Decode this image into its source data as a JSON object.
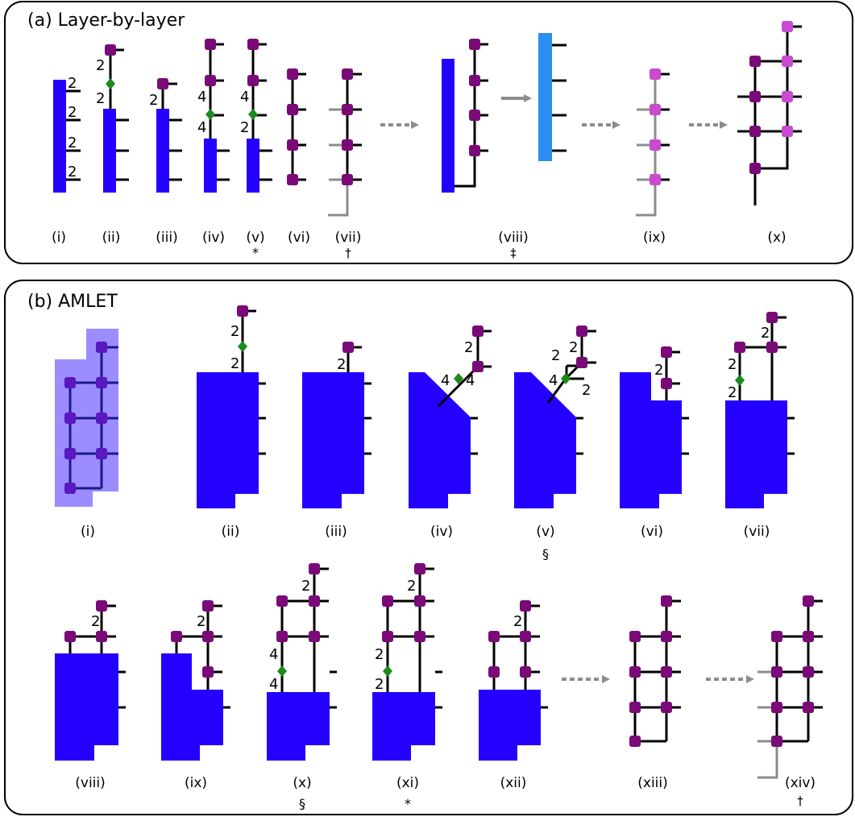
{
  "panel_a": {
    "title": "(a) Layer-by-layer",
    "labels": [
      "(i)",
      "(ii)",
      "(iii)",
      "(iv)",
      "(v)",
      "(vi)",
      "(vii)",
      "(viii)",
      "(ix)",
      "(x)"
    ],
    "marks": {
      "v": "*",
      "vii": "†",
      "viii": "‡"
    },
    "bond_dims": {
      "two": "2",
      "four": "4"
    }
  },
  "panel_b": {
    "title": "(b) AMLET",
    "labels_row1": [
      "(i)",
      "(ii)",
      "(iii)",
      "(iv)",
      "(v)",
      "(vi)",
      "(vii)"
    ],
    "labels_row2": [
      "(viii)",
      "(ix)",
      "(x)",
      "(xi)",
      "(xii)",
      "(xiii)",
      "(xiv)"
    ],
    "marks": {
      "v": "§",
      "x": "§",
      "xi": "*",
      "xiv": "†"
    },
    "bond_dims": {
      "two": "2",
      "four": "4"
    }
  },
  "colors": {
    "block": "#2400ff",
    "block_light": "#2b8ef0",
    "block_faint": "#9b8cff",
    "site": "#7a0a78",
    "site_light": "#c84bd0",
    "site_faint": "#5a18c0",
    "diamond": "#1c8a1c",
    "line": "#000000",
    "grey": "#8c8c8c"
  }
}
